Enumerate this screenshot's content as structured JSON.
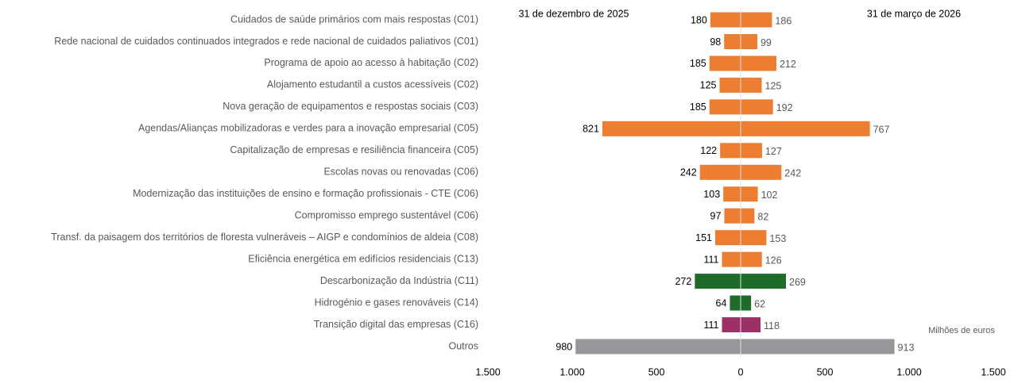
{
  "chart_data": {
    "type": "butterfly",
    "unit_label": "Milhões de euros",
    "categories": [
      "Cuidados de saúde primários com mais respostas (C01)",
      "Rede nacional de cuidados continuados integrados e rede nacional de cuidados paliativos (C01)",
      "Programa de apoio ao acesso à habitação (C02)",
      "Alojamento estudantil a custos acessíveis (C02)",
      "Nova geração de equipamentos e respostas sociais (C03)",
      "Agendas/Alianças  mobilizadoras e verdes para a inovação empresarial (C05)",
      "Capitalização de empresas e resiliência financeira (C05)",
      "Escolas novas ou renovadas (C06)",
      "Modernização das instituições de ensino e formação profissionais - CTE (C06)",
      "Compromisso emprego sustentável (C06)",
      "Transf. da paisagem dos territórios de floresta vulneráveis – AIGP e condomínios de aldeia (C08)",
      "Eficiência energética em edifícios residenciais (C13)",
      "Descarbonização da Indústria (C11)",
      "Hidrogénio e gases renováveis (C14)",
      "Transição digital das empresas (C16)",
      "Outros"
    ],
    "colors": [
      "#ED7D31",
      "#ED7D31",
      "#ED7D31",
      "#ED7D31",
      "#ED7D31",
      "#ED7D31",
      "#ED7D31",
      "#ED7D31",
      "#ED7D31",
      "#ED7D31",
      "#ED7D31",
      "#ED7D31",
      "#1E6B2A",
      "#1E6B2A",
      "#9E3068",
      "#97979B"
    ],
    "series": [
      {
        "name": "31 de dezembro de 2025",
        "side": "left",
        "values": [
          180,
          98,
          185,
          125,
          185,
          821,
          122,
          242,
          103,
          97,
          151,
          111,
          272,
          64,
          111,
          980
        ]
      },
      {
        "name": "31 de março de 2026",
        "side": "right",
        "values": [
          186,
          99,
          212,
          125,
          192,
          767,
          127,
          242,
          102,
          82,
          153,
          126,
          269,
          62,
          118,
          913
        ]
      }
    ],
    "xlim": [
      0,
      1500
    ],
    "xticks": [
      0,
      500,
      {
        "value": 1000,
        "label": "1.000"
      },
      {
        "value": 1500,
        "label": "1.500"
      }
    ]
  }
}
